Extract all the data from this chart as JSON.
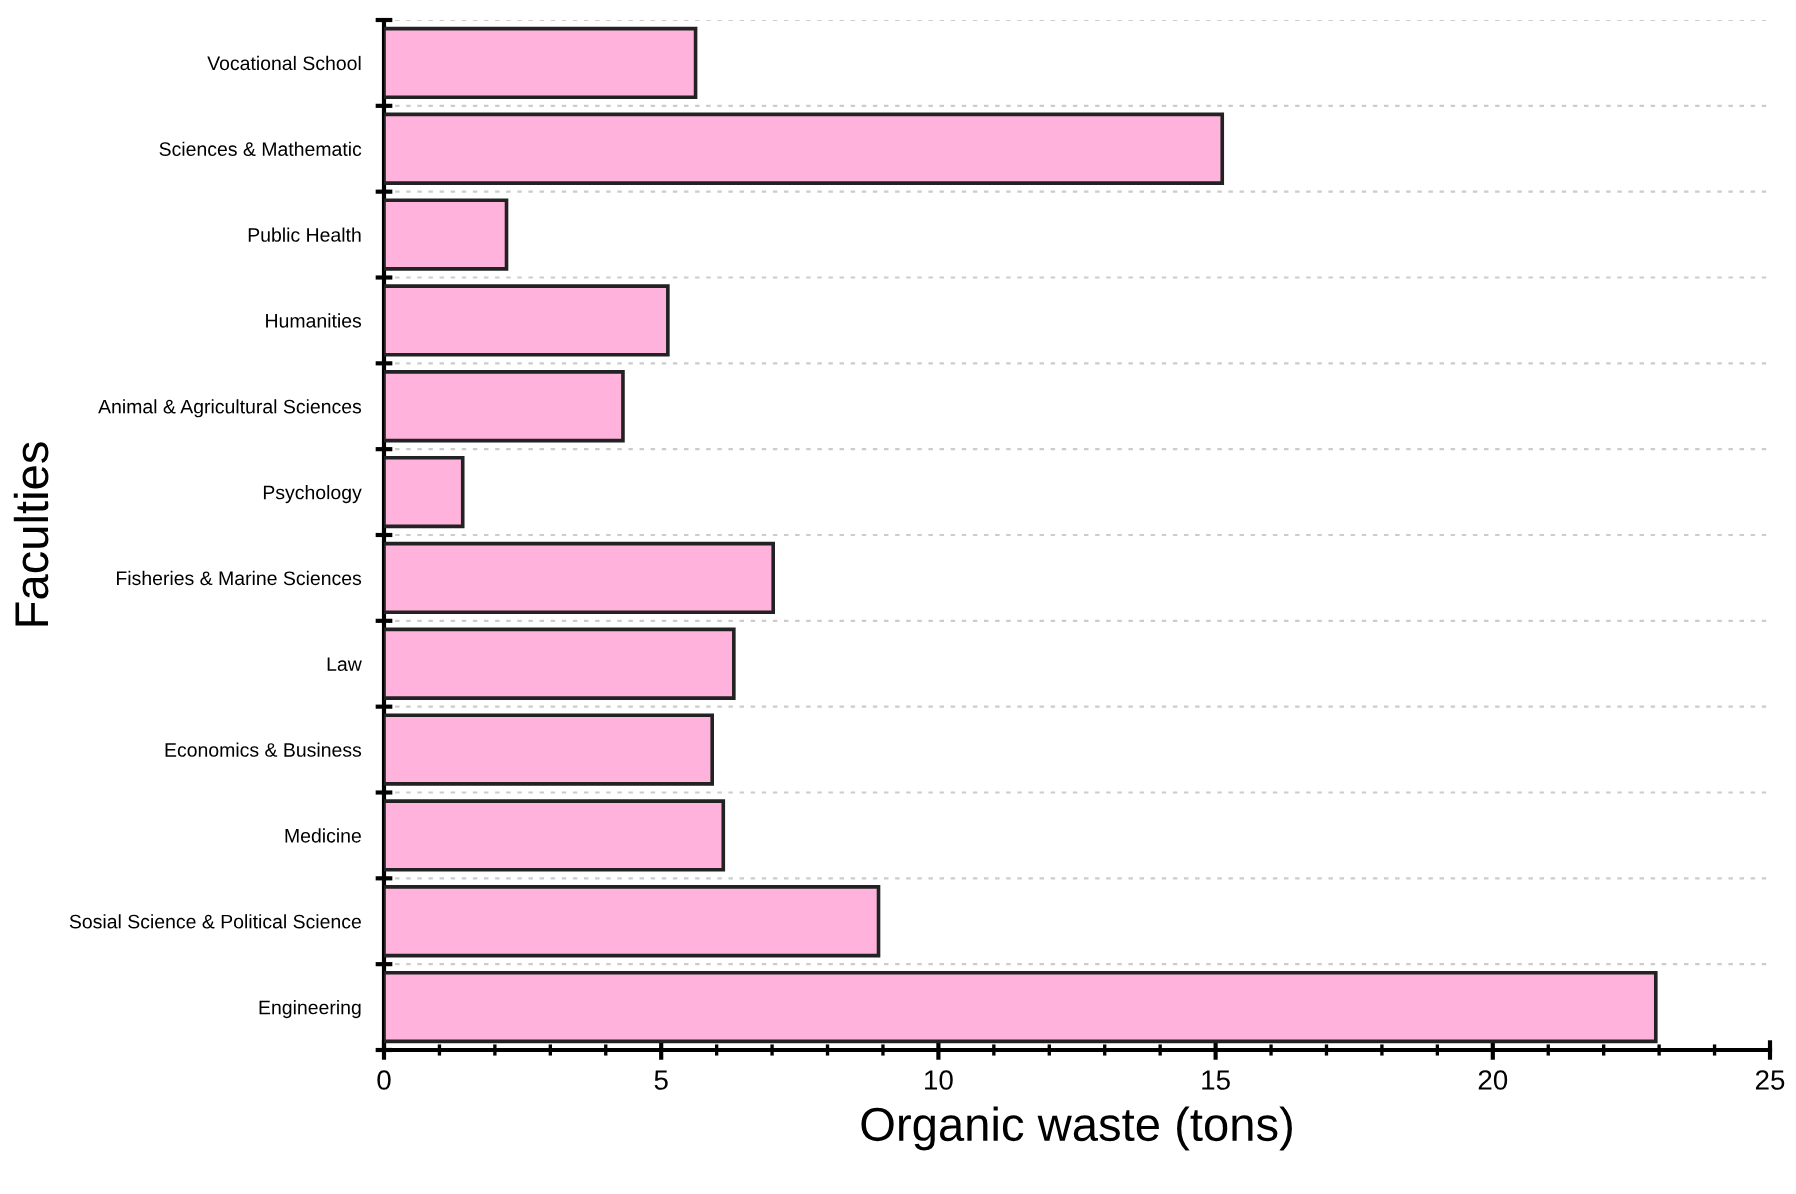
{
  "chart_data": {
    "type": "bar",
    "orientation": "horizontal",
    "xlabel": "Organic waste (tons)",
    "ylabel": "Faculties",
    "categories": [
      "Vocational School",
      "Sciences & Mathematic",
      "Public Health",
      "Humanities",
      "Animal & Agricultural Sciences",
      "Psychology",
      "Fisheries & Marine Sciences",
      "Law",
      "Economics & Business",
      "Medicine",
      "Sosial Science & Political Science",
      "Engineering"
    ],
    "values": [
      5.62,
      15.12,
      2.21,
      5.12,
      4.31,
      1.42,
      7.02,
      6.31,
      5.92,
      6.12,
      8.92,
      22.94
    ],
    "color": "#ffb3dc",
    "xlim": [
      0,
      25
    ],
    "xticks": [
      0,
      5,
      10,
      15,
      20,
      25
    ],
    "grid": "y",
    "legend": false
  }
}
